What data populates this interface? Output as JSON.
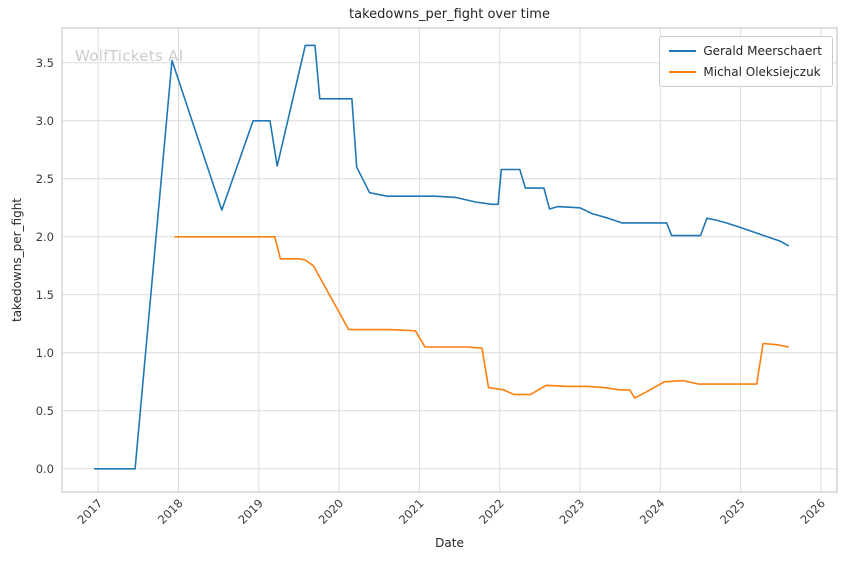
{
  "watermark": "WolfTickets AI",
  "chart_data": {
    "type": "line",
    "title": "takedowns_per_fight over time",
    "xlabel": "Date",
    "ylabel": "takedowns_per_fight",
    "xlim": [
      2016.55,
      2026.2
    ],
    "ylim": [
      -0.2,
      3.8
    ],
    "x_ticks": [
      2017,
      2018,
      2019,
      2020,
      2021,
      2022,
      2023,
      2024,
      2025,
      2026
    ],
    "x_tick_labels": [
      "2017",
      "2018",
      "2019",
      "2020",
      "2021",
      "2022",
      "2023",
      "2024",
      "2025",
      "2026"
    ],
    "y_ticks": [
      0.0,
      0.5,
      1.0,
      1.5,
      2.0,
      2.5,
      3.0,
      3.5
    ],
    "y_tick_labels": [
      "0.0",
      "0.5",
      "1.0",
      "1.5",
      "2.0",
      "2.5",
      "3.0",
      "3.5"
    ],
    "grid": true,
    "legend": {
      "position": "upper right",
      "entries": [
        "Gerald Meerschaert",
        "Michal Oleksiejczuk"
      ]
    },
    "colors": {
      "series1": "#1f77b4",
      "series2": "#ff7f0e",
      "grid": "#dcdcdc",
      "frame": "#c9c9c9",
      "text": "#3c3c3c",
      "watermark": "#cccccc",
      "background": "#ffffff"
    },
    "series": [
      {
        "name": "Gerald Meerschaert",
        "color": "#1f77b4",
        "points": [
          [
            2016.95,
            0.0
          ],
          [
            2017.46,
            0.0
          ],
          [
            2017.92,
            3.52
          ],
          [
            2018.54,
            2.23
          ],
          [
            2018.93,
            3.0
          ],
          [
            2019.14,
            3.0
          ],
          [
            2019.23,
            2.61
          ],
          [
            2019.58,
            3.65
          ],
          [
            2019.7,
            3.65
          ],
          [
            2019.76,
            3.19
          ],
          [
            2020.16,
            3.19
          ],
          [
            2020.22,
            2.6
          ],
          [
            2020.38,
            2.38
          ],
          [
            2020.6,
            2.35
          ],
          [
            2021.2,
            2.35
          ],
          [
            2021.45,
            2.34
          ],
          [
            2021.7,
            2.3
          ],
          [
            2021.9,
            2.28
          ],
          [
            2021.98,
            2.28
          ],
          [
            2022.02,
            2.58
          ],
          [
            2022.25,
            2.58
          ],
          [
            2022.32,
            2.42
          ],
          [
            2022.55,
            2.42
          ],
          [
            2022.62,
            2.24
          ],
          [
            2022.72,
            2.26
          ],
          [
            2023.0,
            2.25
          ],
          [
            2023.15,
            2.2
          ],
          [
            2023.35,
            2.16
          ],
          [
            2023.52,
            2.12
          ],
          [
            2024.08,
            2.12
          ],
          [
            2024.14,
            2.01
          ],
          [
            2024.5,
            2.01
          ],
          [
            2024.58,
            2.16
          ],
          [
            2024.72,
            2.14
          ],
          [
            2024.82,
            2.12
          ],
          [
            2025.0,
            2.08
          ],
          [
            2025.25,
            2.02
          ],
          [
            2025.5,
            1.96
          ],
          [
            2025.6,
            1.92
          ]
        ]
      },
      {
        "name": "Michal Oleksiejczuk",
        "color": "#ff7f0e",
        "points": [
          [
            2017.95,
            2.0
          ],
          [
            2019.2,
            2.0
          ],
          [
            2019.27,
            1.81
          ],
          [
            2019.5,
            1.81
          ],
          [
            2019.58,
            1.8
          ],
          [
            2019.68,
            1.75
          ],
          [
            2020.12,
            1.2
          ],
          [
            2020.63,
            1.2
          ],
          [
            2020.95,
            1.19
          ],
          [
            2021.07,
            1.05
          ],
          [
            2021.6,
            1.05
          ],
          [
            2021.78,
            1.04
          ],
          [
            2021.86,
            0.7
          ],
          [
            2022.05,
            0.68
          ],
          [
            2022.18,
            0.64
          ],
          [
            2022.38,
            0.64
          ],
          [
            2022.58,
            0.72
          ],
          [
            2022.85,
            0.71
          ],
          [
            2023.1,
            0.71
          ],
          [
            2023.3,
            0.7
          ],
          [
            2023.5,
            0.68
          ],
          [
            2023.62,
            0.68
          ],
          [
            2023.68,
            0.61
          ],
          [
            2023.82,
            0.66
          ],
          [
            2024.05,
            0.75
          ],
          [
            2024.28,
            0.76
          ],
          [
            2024.48,
            0.73
          ],
          [
            2025.2,
            0.73
          ],
          [
            2025.28,
            1.08
          ],
          [
            2025.45,
            1.07
          ],
          [
            2025.6,
            1.05
          ]
        ]
      }
    ]
  }
}
